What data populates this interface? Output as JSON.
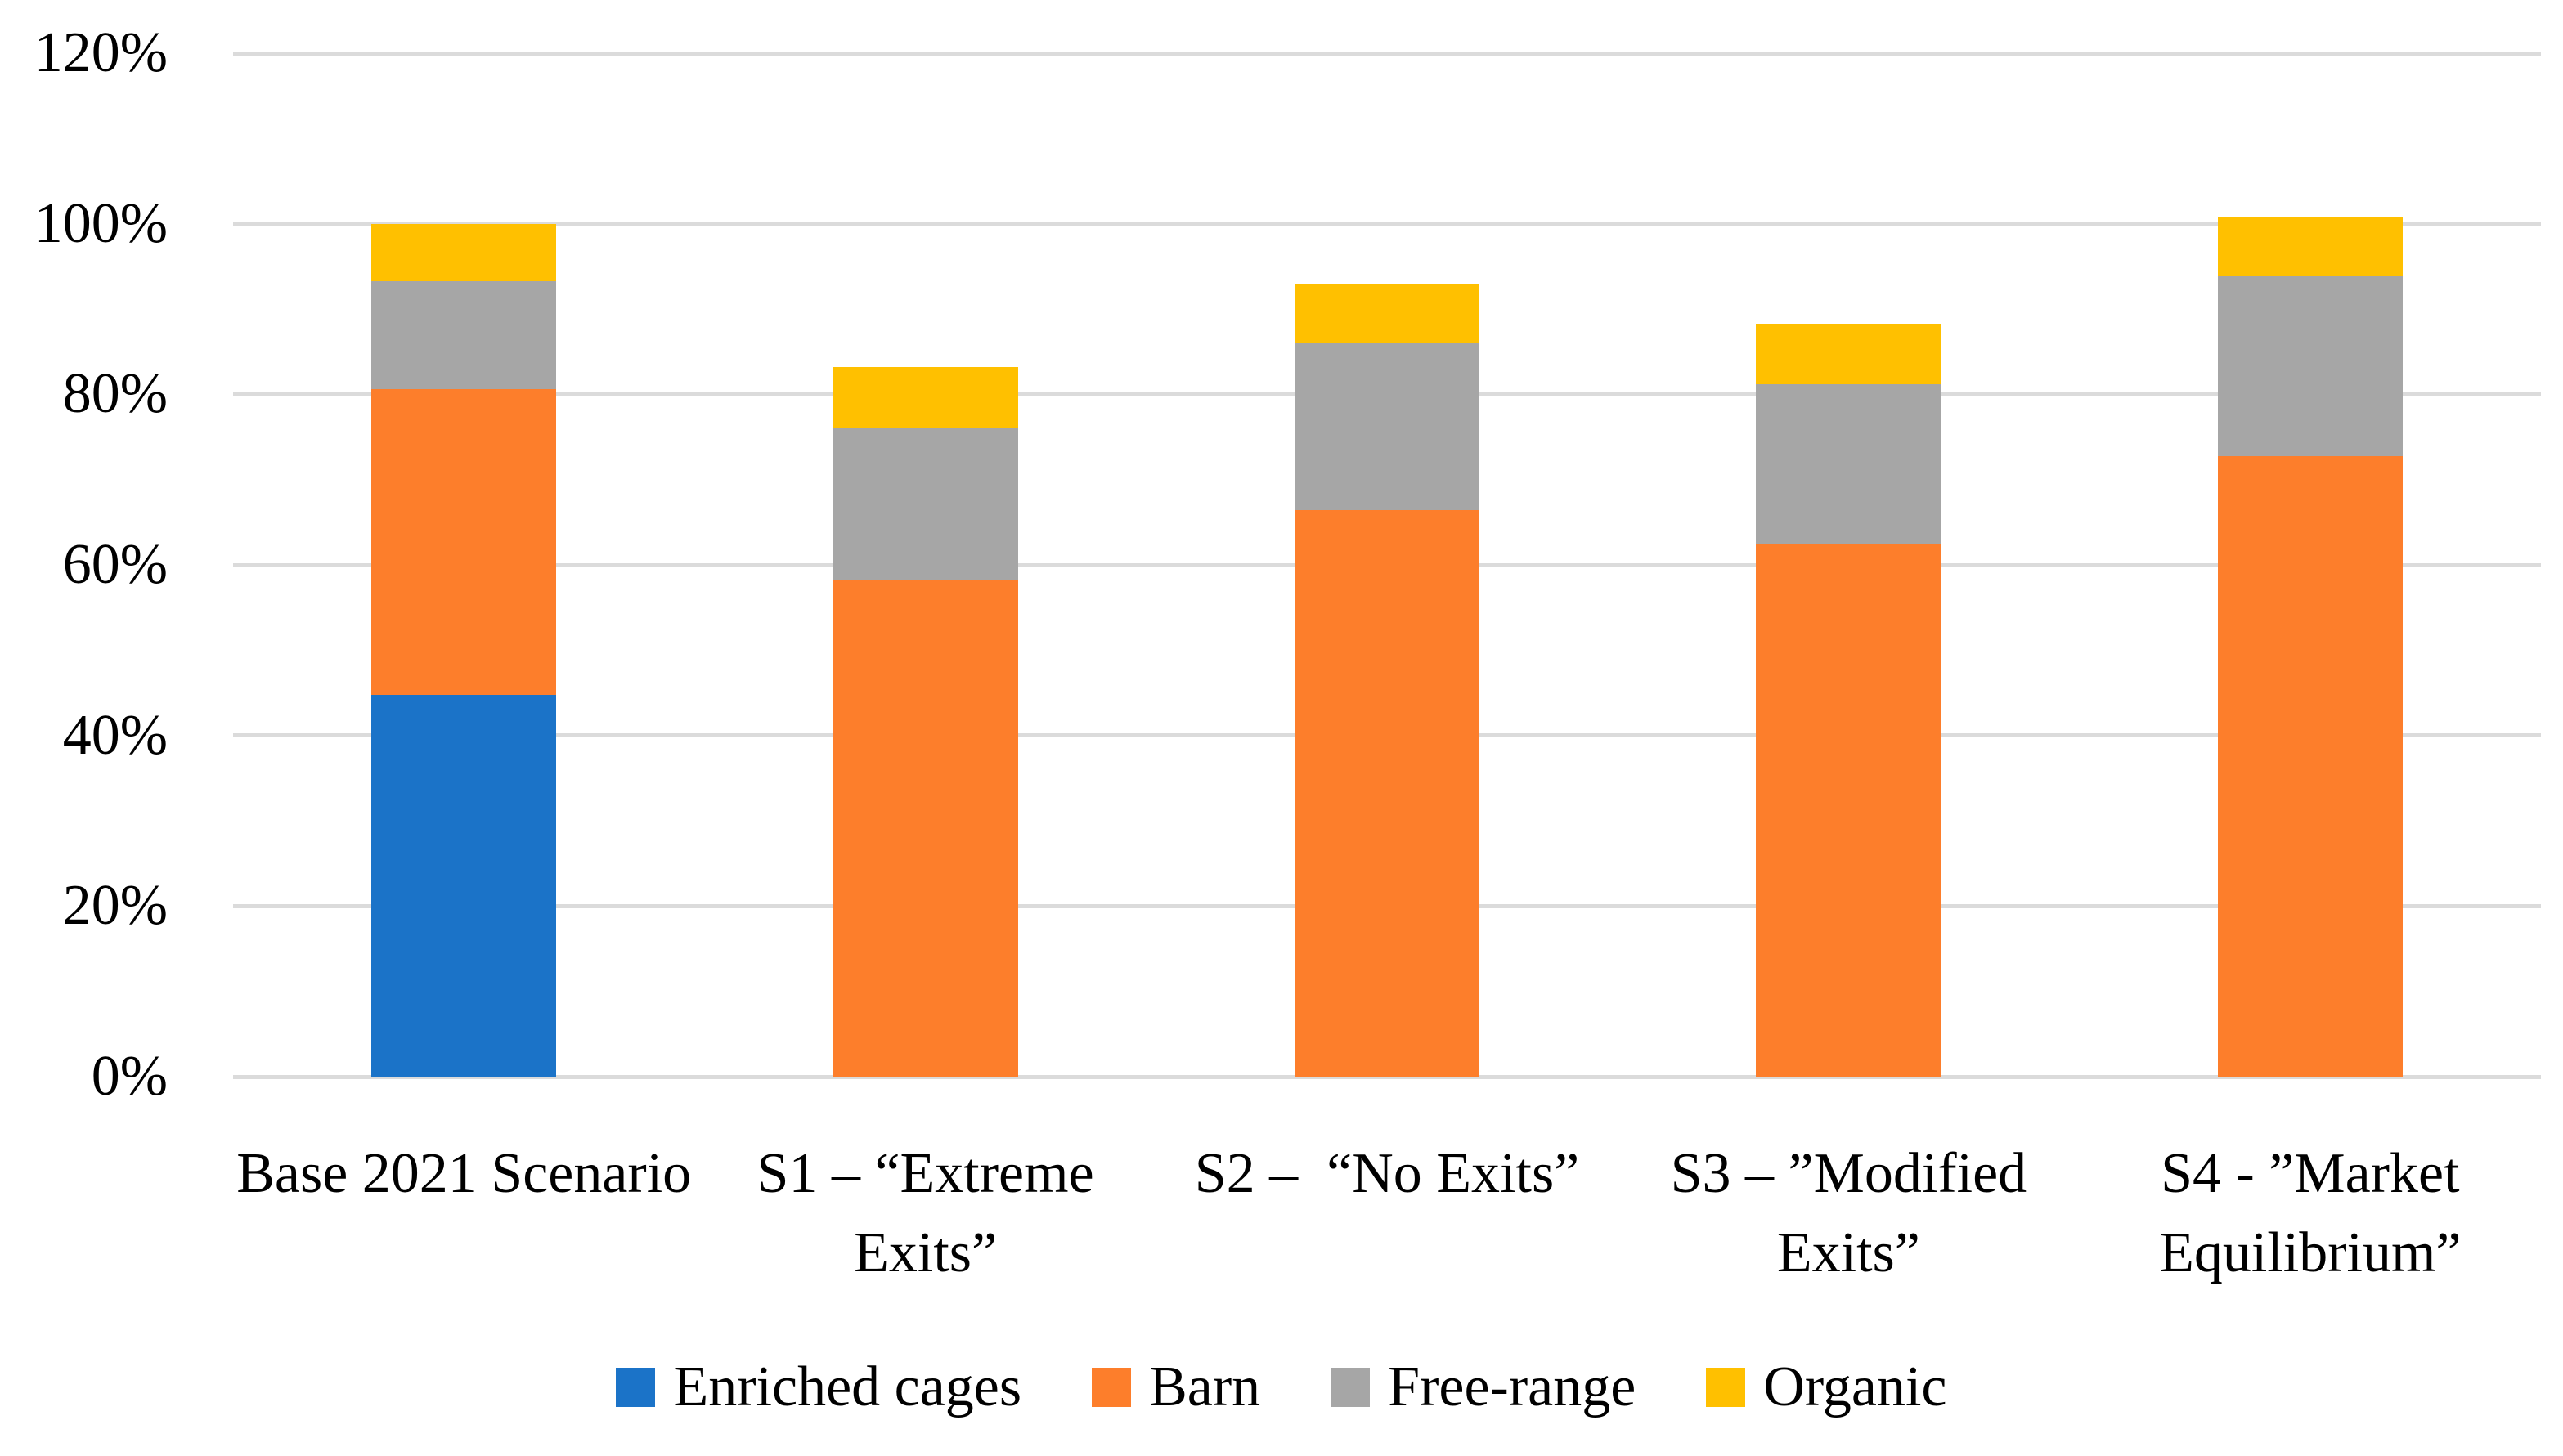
{
  "chart_data": {
    "type": "bar",
    "stacked": true,
    "title": "",
    "xlabel": "",
    "ylabel": "",
    "categories": [
      "Base 2021 Scenario",
      "S1 – “Extreme Exits”",
      "S2 –  “No Exits”",
      "S3 – ”Modified Exits”",
      "S4 - ”Market Equilibrium”"
    ],
    "series": [
      {
        "name": "Enriched cages",
        "color": "#1B73C8",
        "values": [
          44.8,
          0,
          0,
          0,
          0
        ]
      },
      {
        "name": "Barn",
        "color": "#FD7E2B",
        "values": [
          35.8,
          58.3,
          66.4,
          62.4,
          72.7
        ]
      },
      {
        "name": "Free-range",
        "color": "#A6A6A6",
        "values": [
          12.7,
          17.8,
          19.6,
          18.8,
          21.1
        ]
      },
      {
        "name": "Organic",
        "color": "#FFC000",
        "values": [
          6.7,
          7.1,
          7.0,
          7.1,
          7.0
        ]
      }
    ],
    "stack_totals": [
      100.0,
      83.2,
      93.0,
      88.3,
      100.8
    ],
    "y_ticks": [
      {
        "value": 0,
        "label": "0%"
      },
      {
        "value": 20,
        "label": "20%"
      },
      {
        "value": 40,
        "label": "40%"
      },
      {
        "value": 60,
        "label": "60%"
      },
      {
        "value": 80,
        "label": "80%"
      },
      {
        "value": 100,
        "label": "100%"
      },
      {
        "value": 120,
        "label": "120%"
      }
    ],
    "ylim": [
      0,
      120
    ],
    "grid": true,
    "gridline_color": "#DBDBDB",
    "legend_position": "bottom",
    "legend_labels": [
      "Enriched cages",
      "Barn",
      "Free-range",
      "Organic"
    ],
    "background_color": "#FFFFFF",
    "text_color": "#000000"
  }
}
